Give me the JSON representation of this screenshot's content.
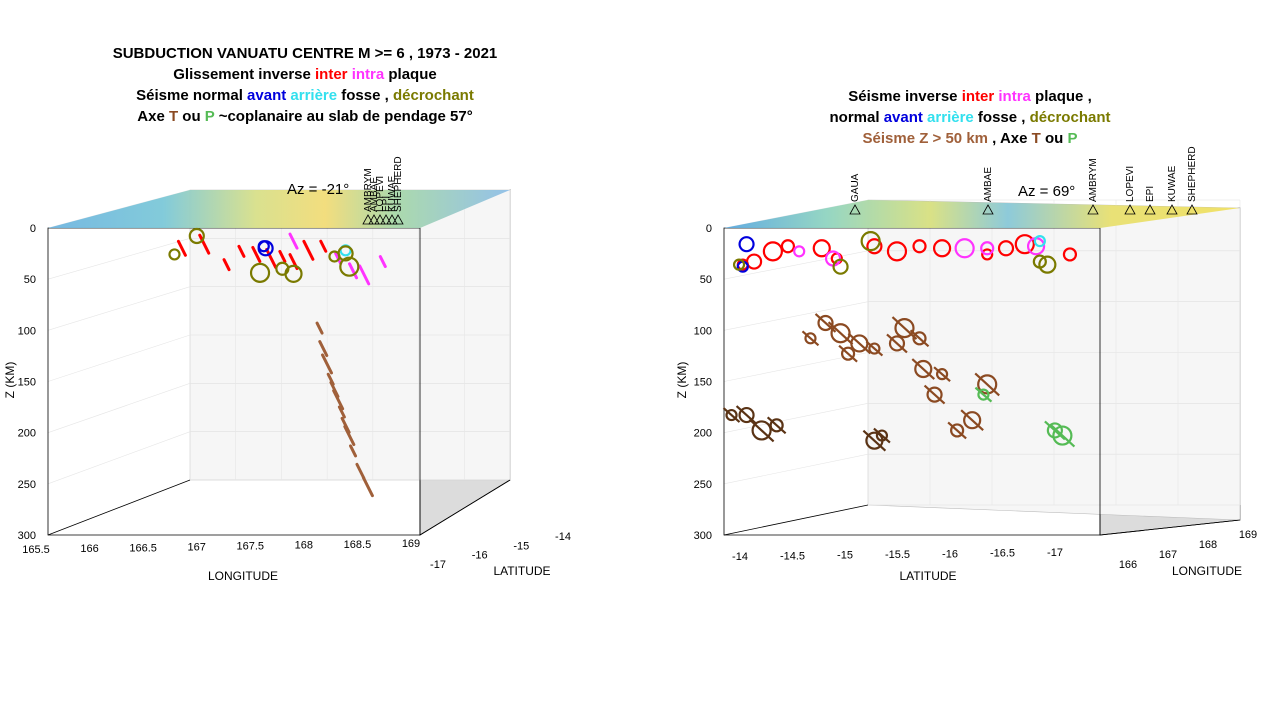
{
  "left": {
    "title": {
      "line1": "SUBDUCTION VANUATU CENTRE  M >=  6  , 1973 - 2021",
      "line2_a": "Glissement inverse ",
      "line2_inter": "inter",
      "line2_intra": " intra",
      "line2_b": " plaque",
      "line3_a": "Séisme normal  ",
      "line3_avant": "avant",
      "line3_arriere": "  arrière",
      "line3_b": "  fosse  ,  ",
      "line3_decro": "décrochant",
      "line4_a": "Axe  ",
      "line4_T": "T",
      "line4_ou": " ou ",
      "line4_P": "P",
      "line4_b": " ~coplanaire au slab de pendage 57°"
    },
    "az_label": "Az =  -21°",
    "zlabel": "Z (KM)",
    "xlabel": "LONGITUDE",
    "ylabel": "LATITUDE",
    "z_ticks": [
      "0",
      "50",
      "100",
      "150",
      "200",
      "250",
      "300"
    ],
    "x_ticks": [
      "165.5",
      "166",
      "166.5",
      "167",
      "167.5",
      "168",
      "168.5",
      "169"
    ],
    "y_ticks": [
      "-17",
      "-16",
      "-15",
      "-14"
    ],
    "volcano_labels": [
      "AMBRYM",
      "AMBAE",
      "LOPEVI",
      "EPI",
      "KUWAE",
      "SHEPHERD"
    ]
  },
  "right": {
    "title": {
      "line1_a": "Séisme inverse ",
      "line1_inter": "inter",
      "line1_intra": " intra",
      "line1_b": " plaque ,",
      "line2_a": "normal  ",
      "line2_avant": "avant",
      "line2_arriere": "  arrière",
      "line2_b": "  fosse  ,  ",
      "line2_decro": "décrochant",
      "line3_a": "Séisme Z > 50 km",
      "line3_b": " , Axe  ",
      "line3_T": "T",
      "line3_ou": "  ou  ",
      "line3_P": "P"
    },
    "az_label": "Az =  69°",
    "zlabel": "Z (KM)",
    "xlabel": "LATITUDE",
    "ylabel": "LONGITUDE",
    "z_ticks": [
      "0",
      "50",
      "100",
      "150",
      "200",
      "250",
      "300"
    ],
    "x_ticks": [
      "-14",
      "-14.5",
      "-15",
      "-15.5",
      "-16",
      "-16.5",
      "-17"
    ],
    "y_ticks": [
      "166",
      "167",
      "168",
      "169"
    ],
    "volcano_labels": [
      "GAUA",
      "AMBAE",
      "AMBRYM",
      "LOPEVI",
      "EPI",
      "KUWAE",
      "SHEPHERD"
    ]
  },
  "colors": {
    "inter": "#ff0000",
    "intra": "#ff33ff",
    "avant": "#0000dd",
    "arriere": "#33e0ee",
    "decrochant": "#7a7a00",
    "deep": "#8b4a22",
    "deep_dark": "#5a3315",
    "axe_T": "#8b4a22",
    "axe_P": "#55bb55",
    "light_brown": "#e89a70"
  },
  "chart_data": [
    {
      "type": "scatter",
      "view": "3d",
      "azimuth": -21,
      "title": "SUBDUCTION VANUATU CENTRE  M >=  6  , 1973 - 2021",
      "xlabel": "LONGITUDE",
      "ylabel": "LATITUDE",
      "zlabel": "Z (KM)",
      "xlim": [
        165.5,
        169
      ],
      "ylim": [
        -17,
        -14
      ],
      "zlim": [
        0,
        300
      ],
      "series": [
        {
          "name": "inter",
          "color": "#ff0000",
          "points": [
            {
              "h": 0.52,
              "z": 15
            },
            {
              "h": 0.56,
              "z": 18
            },
            {
              "h": 0.6,
              "z": 22
            },
            {
              "h": 0.63,
              "z": 20
            },
            {
              "h": 0.66,
              "z": 25
            },
            {
              "h": 0.7,
              "z": 14
            },
            {
              "h": 0.74,
              "z": 10
            },
            {
              "h": 0.36,
              "z": 12
            },
            {
              "h": 0.42,
              "z": 8
            },
            {
              "h": 0.48,
              "z": 28
            }
          ]
        },
        {
          "name": "intra",
          "color": "#ff33ff",
          "points": [
            {
              "h": 0.78,
              "z": 22
            },
            {
              "h": 0.82,
              "z": 34
            },
            {
              "h": 0.85,
              "z": 38
            },
            {
              "h": 0.9,
              "z": 25
            },
            {
              "h": 0.66,
              "z": 5
            }
          ]
        },
        {
          "name": "avant",
          "color": "#0000dd",
          "points": [
            {
              "h": 0.58,
              "z": 10
            },
            {
              "h": 0.585,
              "z": 12
            }
          ]
        },
        {
          "name": "arriere",
          "color": "#33e0ee",
          "points": [
            {
              "h": 0.8,
              "z": 14
            }
          ]
        },
        {
          "name": "décrochant",
          "color": "#7a7a00",
          "points": [
            {
              "h": 0.34,
              "z": 18
            },
            {
              "h": 0.4,
              "z": 0
            },
            {
              "h": 0.57,
              "z": 36
            },
            {
              "h": 0.63,
              "z": 32
            },
            {
              "h": 0.66,
              "z": 37
            },
            {
              "h": 0.77,
              "z": 20
            },
            {
              "h": 0.8,
              "z": 17
            },
            {
              "h": 0.81,
              "z": 30
            }
          ]
        },
        {
          "name": "deep",
          "color": "#a0603a",
          "points": [
            {
              "h": 0.73,
              "z": 90
            },
            {
              "h": 0.74,
              "z": 110
            },
            {
              "h": 0.75,
              "z": 125
            },
            {
              "h": 0.76,
              "z": 140
            },
            {
              "h": 0.77,
              "z": 150
            },
            {
              "h": 0.78,
              "z": 160
            },
            {
              "h": 0.79,
              "z": 172
            },
            {
              "h": 0.8,
              "z": 185
            },
            {
              "h": 0.81,
              "z": 195
            },
            {
              "h": 0.82,
              "z": 210
            },
            {
              "h": 0.84,
              "z": 230
            },
            {
              "h": 0.86,
              "z": 245
            }
          ]
        }
      ]
    },
    {
      "type": "scatter",
      "view": "3d",
      "azimuth": 69,
      "title": "Séisme inverse inter intra plaque ,",
      "xlabel": "LATITUDE",
      "ylabel": "LONGITUDE",
      "zlabel": "Z (KM)",
      "xlim": [
        -17,
        -14
      ],
      "ylim": [
        166,
        169
      ],
      "zlim": [
        0,
        300
      ],
      "series": [
        {
          "name": "inter",
          "color": "#ff0000",
          "points": [
            {
              "h": 0.05,
              "z": 28
            },
            {
              "h": 0.08,
              "z": 25
            },
            {
              "h": 0.13,
              "z": 15
            },
            {
              "h": 0.17,
              "z": 10
            },
            {
              "h": 0.26,
              "z": 12
            },
            {
              "h": 0.3,
              "z": 22
            },
            {
              "h": 0.4,
              "z": 10
            },
            {
              "h": 0.46,
              "z": 15
            },
            {
              "h": 0.52,
              "z": 10
            },
            {
              "h": 0.58,
              "z": 12
            },
            {
              "h": 0.7,
              "z": 18
            },
            {
              "h": 0.75,
              "z": 12
            },
            {
              "h": 0.8,
              "z": 8
            },
            {
              "h": 0.92,
              "z": 18
            }
          ]
        },
        {
          "name": "intra",
          "color": "#ff33ff",
          "points": [
            {
              "h": 0.2,
              "z": 15
            },
            {
              "h": 0.29,
              "z": 22
            },
            {
              "h": 0.64,
              "z": 12
            },
            {
              "h": 0.7,
              "z": 12
            },
            {
              "h": 0.83,
              "z": 10
            }
          ]
        },
        {
          "name": "avant",
          "color": "#0000dd",
          "points": [
            {
              "h": 0.05,
              "z": 30
            },
            {
              "h": 0.06,
              "z": 8
            }
          ]
        },
        {
          "name": "arriere",
          "color": "#33e0ee",
          "points": [
            {
              "h": 0.84,
              "z": 5
            }
          ]
        },
        {
          "name": "décrochant",
          "color": "#7a7a00",
          "points": [
            {
              "h": 0.04,
              "z": 28
            },
            {
              "h": 0.31,
              "z": 30
            },
            {
              "h": 0.39,
              "z": 5
            },
            {
              "h": 0.84,
              "z": 25
            },
            {
              "h": 0.86,
              "z": 28
            }
          ]
        },
        {
          "name": "deep",
          "color": "#8b4a22",
          "points": [
            {
              "h": 0.23,
              "z": 100
            },
            {
              "h": 0.27,
              "z": 85
            },
            {
              "h": 0.31,
              "z": 95
            },
            {
              "h": 0.33,
              "z": 115
            },
            {
              "h": 0.36,
              "z": 105
            },
            {
              "h": 0.4,
              "z": 110
            },
            {
              "h": 0.46,
              "z": 105
            },
            {
              "h": 0.48,
              "z": 90
            },
            {
              "h": 0.52,
              "z": 100
            },
            {
              "h": 0.53,
              "z": 130
            },
            {
              "h": 0.58,
              "z": 135
            },
            {
              "h": 0.56,
              "z": 155
            },
            {
              "h": 0.7,
              "z": 145
            },
            {
              "h": 0.62,
              "z": 190
            },
            {
              "h": 0.66,
              "z": 180
            }
          ]
        },
        {
          "name": "deep_dark",
          "color": "#5a3315",
          "points": [
            {
              "h": 0.02,
              "z": 175
            },
            {
              "h": 0.06,
              "z": 175
            },
            {
              "h": 0.1,
              "z": 190
            },
            {
              "h": 0.14,
              "z": 185
            },
            {
              "h": 0.4,
              "z": 200
            },
            {
              "h": 0.42,
              "z": 195
            }
          ]
        },
        {
          "name": "axe_P",
          "color": "#55bb55",
          "points": [
            {
              "h": 0.69,
              "z": 155
            },
            {
              "h": 0.88,
              "z": 190
            },
            {
              "h": 0.9,
              "z": 195
            }
          ]
        }
      ]
    }
  ]
}
